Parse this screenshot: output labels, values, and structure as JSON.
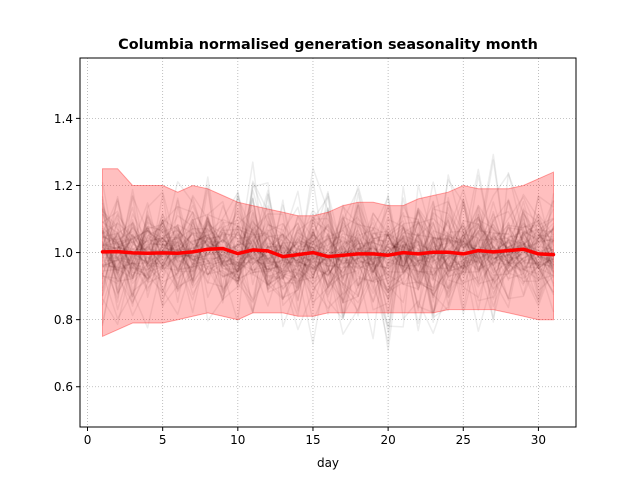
{
  "chart_data": {
    "type": "line",
    "title": "Columbia normalised generation seasonality month",
    "xlabel": "day",
    "ylabel": "",
    "xlim": [
      -0.5,
      32.5
    ],
    "ylim": [
      0.48,
      1.58
    ],
    "x_ticks": [
      0,
      5,
      10,
      15,
      20,
      25,
      30
    ],
    "y_ticks": [
      0.6,
      0.8,
      1.0,
      1.2,
      1.4
    ],
    "x_tick_labels": [
      "0",
      "5",
      "10",
      "15",
      "20",
      "25",
      "30"
    ],
    "y_tick_labels": [
      "0.6",
      "0.8",
      "1.0",
      "1.2",
      "1.4"
    ],
    "grid": true,
    "grid_style": "dotted",
    "legend": "none",
    "colors": {
      "mean_line": "#ff0000",
      "band_fill": "#ff0000",
      "background_lines": "#000000",
      "grid": "#b0b0b0"
    },
    "x": [
      1,
      2,
      3,
      4,
      5,
      6,
      7,
      8,
      9,
      10,
      11,
      12,
      13,
      14,
      15,
      16,
      17,
      18,
      19,
      20,
      21,
      22,
      23,
      24,
      25,
      26,
      27,
      28,
      29,
      30,
      31
    ],
    "mean": [
      1.002,
      1.003,
      0.999,
      0.998,
      0.999,
      0.998,
      1.002,
      1.01,
      1.012,
      0.997,
      1.008,
      1.005,
      0.988,
      0.994,
      1.0,
      0.988,
      0.992,
      0.996,
      0.996,
      0.992,
      1.0,
      0.996,
      1.001,
      1.001,
      0.996,
      1.006,
      1.002,
      1.006,
      1.01,
      0.996,
      0.994
    ],
    "band_upper": [
      1.25,
      1.25,
      1.2,
      1.2,
      1.2,
      1.18,
      1.2,
      1.19,
      1.17,
      1.15,
      1.14,
      1.13,
      1.12,
      1.11,
      1.11,
      1.12,
      1.14,
      1.15,
      1.15,
      1.14,
      1.14,
      1.16,
      1.17,
      1.18,
      1.2,
      1.19,
      1.19,
      1.19,
      1.2,
      1.22,
      1.24
    ],
    "band_lower": [
      0.75,
      0.77,
      0.79,
      0.79,
      0.79,
      0.8,
      0.81,
      0.82,
      0.81,
      0.8,
      0.82,
      0.82,
      0.82,
      0.81,
      0.81,
      0.82,
      0.82,
      0.82,
      0.82,
      0.82,
      0.82,
      0.82,
      0.82,
      0.83,
      0.83,
      0.83,
      0.83,
      0.82,
      0.81,
      0.8,
      0.8
    ],
    "background_series_count": 80
  }
}
